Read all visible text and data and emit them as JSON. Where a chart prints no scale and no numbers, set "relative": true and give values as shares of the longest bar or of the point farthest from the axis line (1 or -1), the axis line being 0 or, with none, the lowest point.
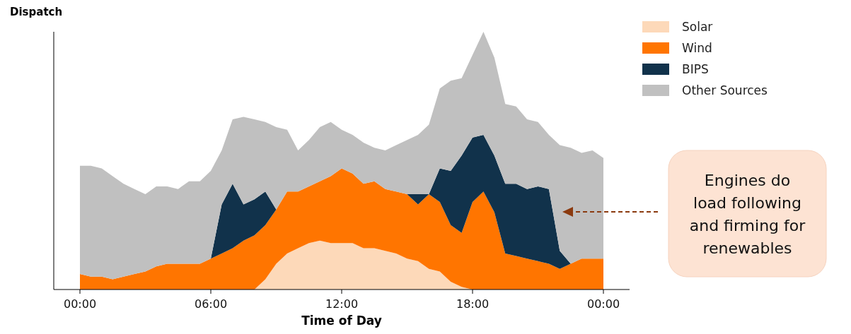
{
  "chart_data": {
    "type": "area",
    "stacked": true,
    "relative": true,
    "ylabel": "Dispatch",
    "xlabel": "Time of Day",
    "x": [
      0,
      0.5,
      1,
      1.5,
      2,
      2.5,
      3,
      3.5,
      4,
      4.5,
      5,
      5.5,
      6,
      6.5,
      7,
      7.5,
      8,
      8.5,
      9,
      9.5,
      10,
      10.5,
      11,
      11.5,
      12,
      12.5,
      13,
      13.5,
      14,
      14.5,
      15,
      15.5,
      16,
      16.5,
      17,
      17.5,
      18,
      18.5,
      19,
      19.5,
      20,
      20.5,
      21,
      21.5,
      22,
      22.5,
      23,
      23.5,
      24
    ],
    "xlim": [
      -1.2,
      25.2
    ],
    "xticks": [
      {
        "value": 0,
        "label": "00:00"
      },
      {
        "value": 6,
        "label": "06:00"
      },
      {
        "value": 12,
        "label": "12:00"
      },
      {
        "value": 18,
        "label": "18:00"
      },
      {
        "value": 24,
        "label": "00:00"
      }
    ],
    "series": [
      {
        "name": "Solar",
        "color": "#fdd9b9",
        "values": [
          0,
          0,
          0,
          0,
          0,
          0,
          0,
          0,
          0,
          0,
          0,
          0,
          0,
          0,
          0,
          0,
          0,
          0.04,
          0.1,
          0.14,
          0.16,
          0.18,
          0.19,
          0.18,
          0.18,
          0.18,
          0.16,
          0.16,
          0.15,
          0.14,
          0.12,
          0.11,
          0.08,
          0.07,
          0.03,
          0.01,
          0,
          0,
          0,
          0,
          0,
          0,
          0,
          0,
          0,
          0,
          0,
          0,
          0
        ]
      },
      {
        "name": "Wind",
        "color": "#ff7500",
        "values": [
          0.06,
          0.05,
          0.05,
          0.04,
          0.05,
          0.06,
          0.07,
          0.09,
          0.1,
          0.1,
          0.1,
          0.1,
          0.12,
          0.14,
          0.16,
          0.19,
          0.21,
          0.21,
          0.21,
          0.24,
          0.22,
          0.22,
          0.23,
          0.26,
          0.29,
          0.27,
          0.25,
          0.26,
          0.24,
          0.24,
          0.25,
          0.22,
          0.29,
          0.27,
          0.22,
          0.21,
          0.34,
          0.38,
          0.3,
          0.14,
          0.13,
          0.12,
          0.11,
          0.1,
          0.08,
          0.1,
          0.12,
          0.12,
          0.12
        ]
      },
      {
        "name": "BIPS",
        "color": "#11324b",
        "values": [
          0,
          0,
          0,
          0,
          0,
          0,
          0,
          0,
          0,
          0,
          0,
          0,
          0,
          0.19,
          0.25,
          0.14,
          0.14,
          0.13,
          0,
          0,
          0,
          0,
          0,
          0,
          0,
          0,
          0,
          0,
          0,
          0,
          0,
          0.04,
          0,
          0.13,
          0.21,
          0.3,
          0.25,
          0.22,
          0.22,
          0.27,
          0.28,
          0.27,
          0.29,
          0.29,
          0.07,
          0,
          0,
          0,
          0
        ]
      },
      {
        "name": "Other Sources",
        "color": "#c0c0c0",
        "values": [
          0.42,
          0.43,
          0.42,
          0.4,
          0.36,
          0.33,
          0.3,
          0.31,
          0.3,
          0.29,
          0.32,
          0.32,
          0.34,
          0.21,
          0.25,
          0.34,
          0.31,
          0.27,
          0.32,
          0.24,
          0.16,
          0.18,
          0.21,
          0.21,
          0.15,
          0.15,
          0.16,
          0.13,
          0.15,
          0.18,
          0.21,
          0.23,
          0.27,
          0.31,
          0.35,
          0.3,
          0.32,
          0.4,
          0.38,
          0.31,
          0.3,
          0.27,
          0.25,
          0.21,
          0.41,
          0.45,
          0.41,
          0.42,
          0.39
        ]
      }
    ],
    "legend": "top right",
    "annotations": [
      "Engines do\nload following\nand firming for\nrenewables"
    ]
  }
}
